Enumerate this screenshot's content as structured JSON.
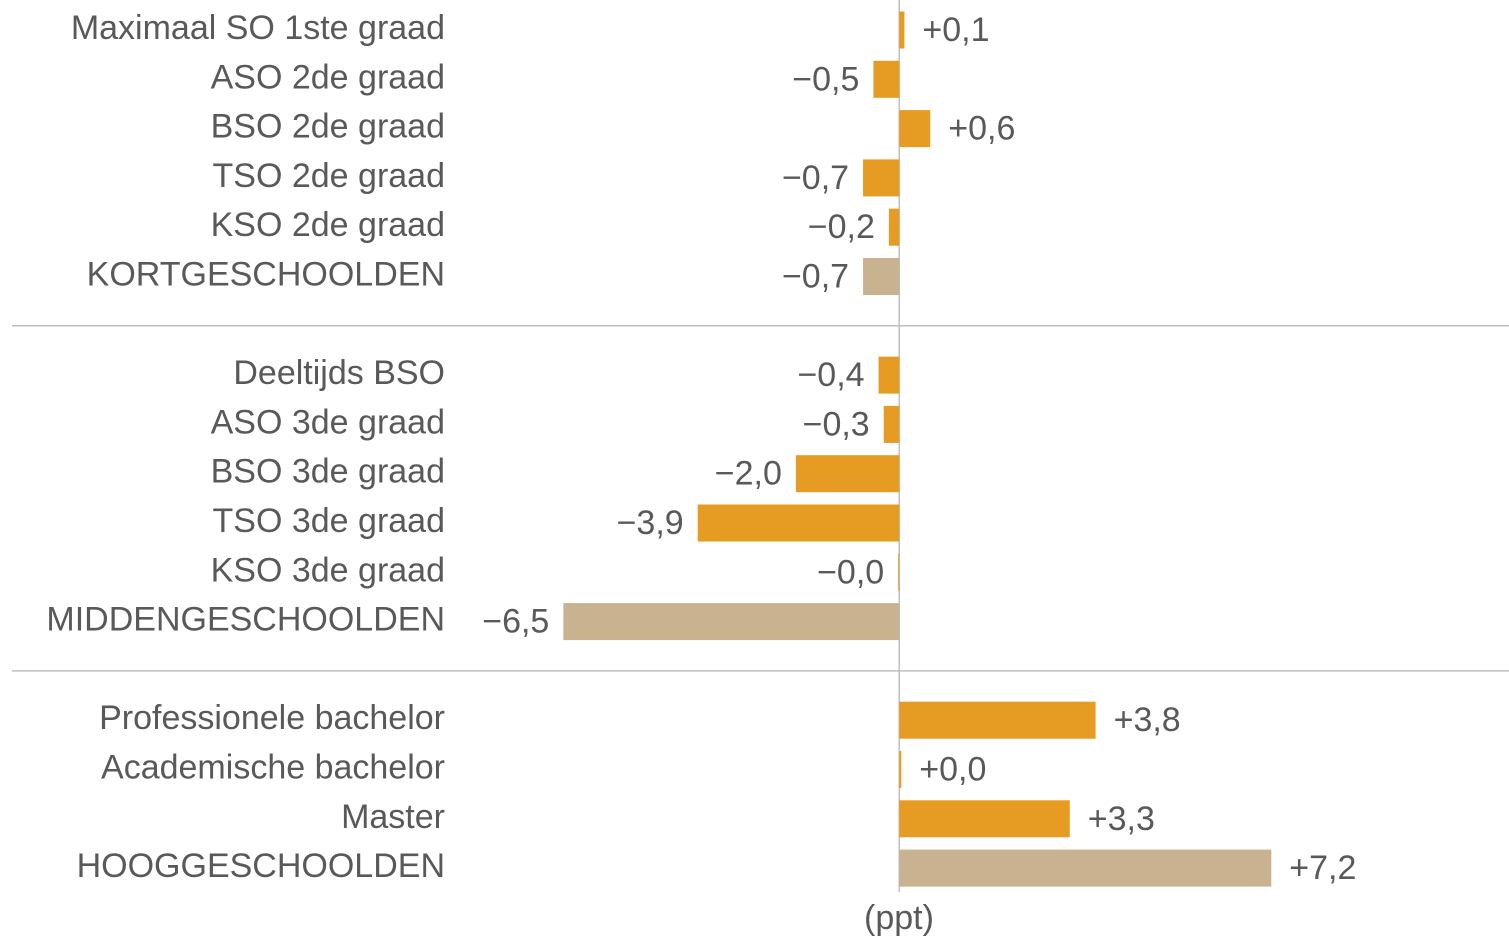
{
  "chart_data": {
    "type": "hbar",
    "x_label": "(ppt)",
    "categories": [
      "Maximaal SO 1ste graad",
      "ASO 2de graad",
      "BSO 2de graad",
      "TSO 2de graad",
      "KSO 2de graad",
      "KORTGESCHOOLDEN",
      "Deeltijds BSO",
      "ASO 3de graad",
      "BSO 3de graad",
      "TSO 3de graad",
      "KSO 3de graad",
      "MIDDENGESCHOOLDEN",
      "Professionele bachelor",
      "Academische bachelor",
      "Master",
      "HOOGGESCHOOLDEN"
    ],
    "values": [
      0.1,
      -0.5,
      0.6,
      -0.7,
      -0.2,
      -0.7,
      -0.4,
      -0.3,
      -2.0,
      -3.9,
      -0.02,
      -6.5,
      3.8,
      0.04,
      3.3,
      7.2
    ],
    "value_labels": [
      "+0,1",
      "−0,5",
      "+0,6",
      "−0,7",
      "−0,2",
      "−0,7",
      "−0,4",
      "−0,3",
      "−2,0",
      "−3,9",
      "−0,0",
      "−6,5",
      "+3,8",
      "+0,0",
      "+3,3",
      "+7,2"
    ],
    "colors": [
      "#e69b22",
      "#e69b22",
      "#e69b22",
      "#e69b22",
      "#e69b22",
      "#c8b290",
      "#e69b22",
      "#e69b22",
      "#e69b22",
      "#e69b22",
      "#e69b22",
      "#c8b290",
      "#e69b22",
      "#e69b22",
      "#e69b22",
      "#c8b290"
    ],
    "xlim": [
      -8.5,
      11.8
    ]
  }
}
